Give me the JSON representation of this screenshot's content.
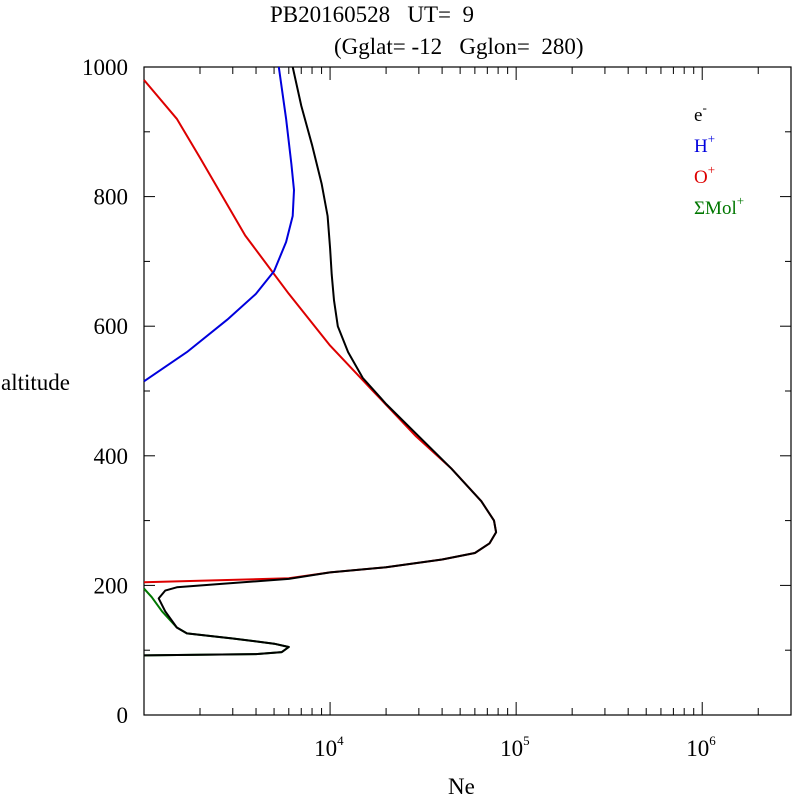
{
  "chart_data": {
    "type": "line",
    "title_line1": "PB20160528   UT=  9",
    "title_line2": "(Gglat= -12   Gglon=  280)",
    "xlabel": "Ne",
    "ylabel": "altitude",
    "x_scale": "log",
    "xlim": [
      1000,
      3000000
    ],
    "ylim": [
      0,
      1000
    ],
    "grid": false,
    "legend_position": "top-right",
    "y_ticks": [
      {
        "value": 0,
        "label": "0"
      },
      {
        "value": 200,
        "label": "200"
      },
      {
        "value": 400,
        "label": "400"
      },
      {
        "value": 600,
        "label": "600"
      },
      {
        "value": 800,
        "label": "800"
      },
      {
        "value": 1000,
        "label": "1000"
      }
    ],
    "x_ticks": [
      {
        "value": 10000,
        "base": "10",
        "exp": "4"
      },
      {
        "value": 100000,
        "base": "10",
        "exp": "5"
      },
      {
        "value": 1000000,
        "base": "10",
        "exp": "6"
      }
    ],
    "series": [
      {
        "key": "electron",
        "name": "e",
        "sup": "-",
        "color": "#000000",
        "points": [
          [
            1000,
            92
          ],
          [
            4000,
            94
          ],
          [
            5500,
            97
          ],
          [
            6000,
            105
          ],
          [
            5000,
            110
          ],
          [
            3000,
            118
          ],
          [
            1700,
            126
          ],
          [
            1500,
            135
          ],
          [
            1300,
            160
          ],
          [
            1200,
            180
          ],
          [
            1300,
            192
          ],
          [
            1500,
            197
          ],
          [
            2500,
            202
          ],
          [
            6000,
            210
          ],
          [
            10000,
            220
          ],
          [
            20000,
            228
          ],
          [
            40000,
            240
          ],
          [
            60000,
            250
          ],
          [
            72000,
            265
          ],
          [
            78000,
            282
          ],
          [
            76000,
            300
          ],
          [
            65000,
            330
          ],
          [
            45000,
            380
          ],
          [
            30000,
            430
          ],
          [
            20000,
            480
          ],
          [
            15000,
            520
          ],
          [
            12500,
            560
          ],
          [
            11000,
            600
          ],
          [
            10500,
            640
          ],
          [
            10200,
            680
          ],
          [
            10000,
            720
          ],
          [
            9700,
            770
          ],
          [
            9000,
            820
          ],
          [
            8000,
            880
          ],
          [
            7000,
            940
          ],
          [
            6300,
            1000
          ]
        ]
      },
      {
        "key": "hydrogen",
        "name": "H",
        "sup": "+",
        "color": "#0000dd",
        "points": [
          [
            1000,
            515
          ],
          [
            1700,
            560
          ],
          [
            2800,
            610
          ],
          [
            4000,
            650
          ],
          [
            5000,
            685
          ],
          [
            5800,
            730
          ],
          [
            6300,
            770
          ],
          [
            6400,
            810
          ],
          [
            6200,
            850
          ],
          [
            5800,
            920
          ],
          [
            5300,
            1000
          ]
        ]
      },
      {
        "key": "oxygen",
        "name": "O",
        "sup": "+",
        "color": "#dd0000",
        "points": [
          [
            1000,
            205
          ],
          [
            6000,
            211
          ],
          [
            10000,
            220
          ],
          [
            20000,
            228
          ],
          [
            40000,
            240
          ],
          [
            60000,
            250
          ],
          [
            72000,
            265
          ],
          [
            78000,
            282
          ],
          [
            76000,
            300
          ],
          [
            65000,
            330
          ],
          [
            45000,
            380
          ],
          [
            29000,
            430
          ],
          [
            17000,
            500
          ],
          [
            10000,
            570
          ],
          [
            6000,
            650
          ],
          [
            3500,
            740
          ],
          [
            2000,
            860
          ],
          [
            1500,
            920
          ],
          [
            1000,
            980
          ]
        ]
      },
      {
        "key": "molecular",
        "name": "ΣMol",
        "sup": "+",
        "color": "#007700",
        "points": [
          [
            1000,
            92
          ],
          [
            4000,
            94
          ],
          [
            5500,
            97
          ],
          [
            6000,
            105
          ],
          [
            5000,
            110
          ],
          [
            3000,
            118
          ],
          [
            1700,
            126
          ],
          [
            1500,
            135
          ],
          [
            1250,
            160
          ],
          [
            1100,
            182
          ],
          [
            1000,
            195
          ]
        ]
      }
    ]
  }
}
